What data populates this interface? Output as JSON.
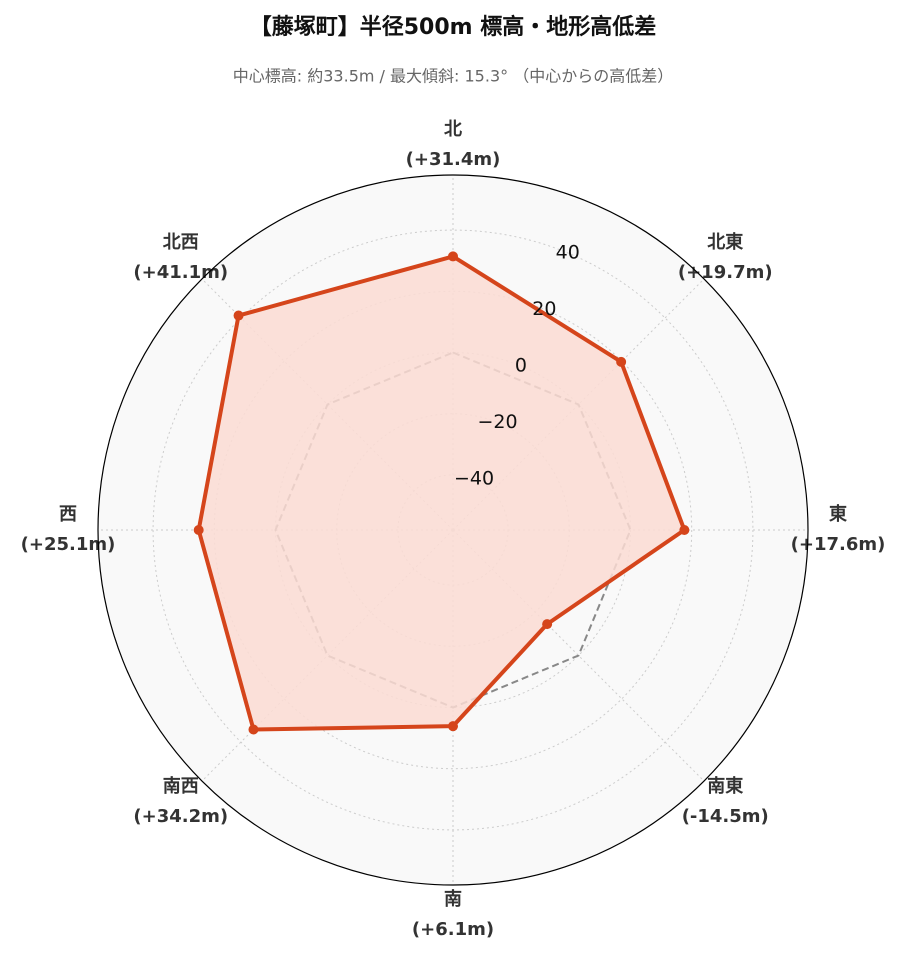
{
  "chart_data": {
    "type": "radar",
    "title": "【藤塚町】半径500m 標高・地形高低差",
    "subtitle": "中心標高: 約33.5m / 最大傾斜: 15.3° （中心からの高低差）",
    "categories": [
      "北",
      "北東",
      "東",
      "南東",
      "南",
      "南西",
      "西",
      "北西"
    ],
    "values": [
      31.4,
      19.7,
      17.6,
      -14.5,
      6.1,
      34.2,
      25.1,
      41.1
    ],
    "value_labels": [
      "(+31.4m)",
      "(+19.7m)",
      "(+17.6m)",
      "(-14.5m)",
      "(+6.1m)",
      "(+34.2m)",
      "(+25.1m)",
      "(+41.1m)"
    ],
    "color": "#d5451b",
    "fill_color": "#fcdcd4",
    "reference_line": {
      "value": 0,
      "color": "#888888"
    },
    "rlim": [
      -58,
      58
    ],
    "rticks": [
      {
        "value": -40,
        "label": "−40"
      },
      {
        "value": -20,
        "label": "−20"
      },
      0,
      20,
      40
    ],
    "grid": true
  }
}
